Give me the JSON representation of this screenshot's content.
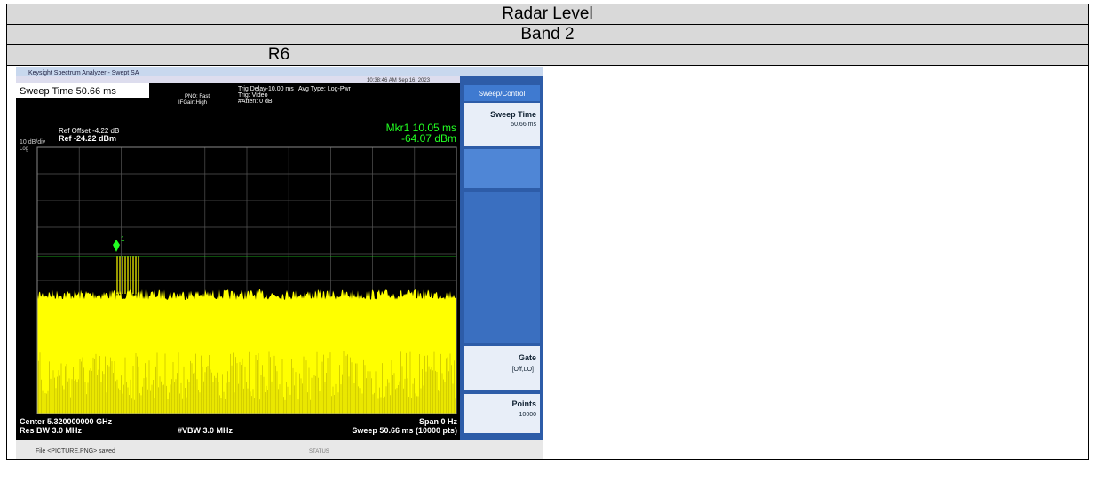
{
  "table": {
    "rows": [
      [
        "Radar Level"
      ],
      [
        "Band 2"
      ],
      [
        "R6",
        ""
      ]
    ]
  },
  "screenshot": {
    "window_title": "Keysight Spectrum Analyzer - Swept SA",
    "datetime": "10:38:46 AM Sep 16, 2023",
    "sweep_time": "Sweep Time 50.66 ms",
    "trig_delay": "Trig Delay-10.00 ms",
    "avg_type": "Avg Type: Log-Pwr",
    "pno": "PNO: Fast",
    "ifgain": "IFGain:High",
    "trig": "Trig: Video",
    "atten": "#Atten: 0 dB",
    "ref_offset": "Ref Offset -4.22 dB",
    "ref": "Ref -24.22 dBm",
    "scale": "10 dB/div",
    "log": "Log",
    "marker_time": "Mkr1 10.05 ms",
    "marker_level": "-64.07 dBm",
    "marker_id": "1",
    "menu_title": "Sweep/Control",
    "softkeys": [
      {
        "label": "Sweep Time",
        "value": "50.66 ms"
      },
      {
        "label": "Gate",
        "value": "[Off,LO]"
      },
      {
        "label": "Points",
        "value": "10000"
      }
    ],
    "center": "Center 5.320000000 GHz",
    "res_bw": "Res BW 3.0 MHz",
    "vbw": "#VBW 3.0 MHz",
    "span": "Span 0 Hz",
    "sweep": "Sweep  50.66 ms (10000 pts)",
    "status": "File <PICTURE.PNG> saved",
    "status_right": "STATUS"
  }
}
